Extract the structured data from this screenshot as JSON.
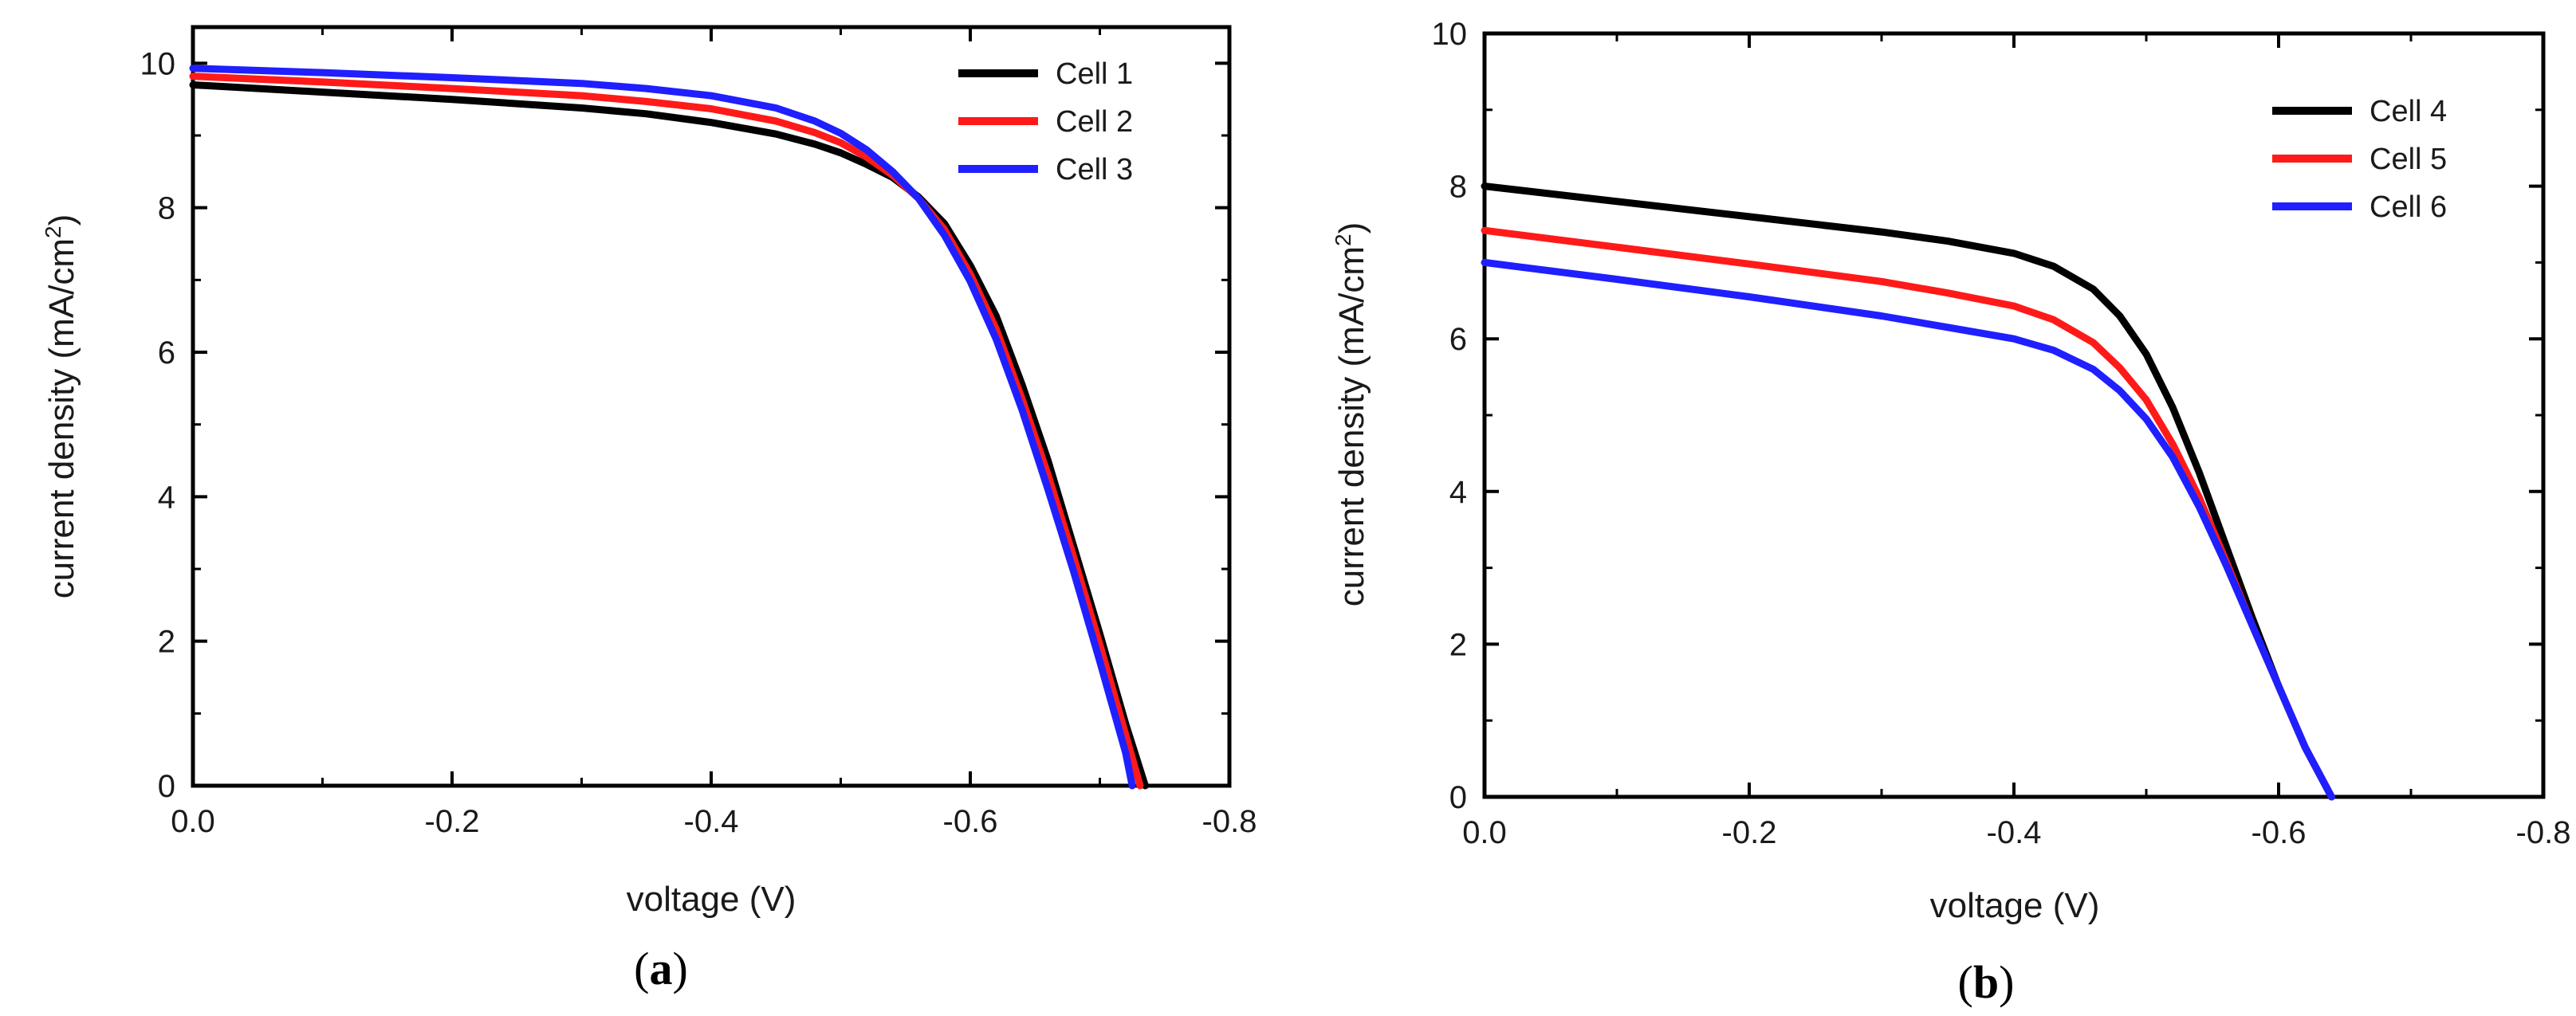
{
  "colors": {
    "cell_black": "#000000",
    "cell_red": "#ff1a1a",
    "cell_blue": "#1f1fff"
  },
  "chart_data": [
    {
      "type": "line",
      "panel": "a",
      "caption_open": "(",
      "caption_letter": "a",
      "caption_close": ")",
      "title": "",
      "xlabel": "voltage (V)",
      "ylabel": "current density (mA/cm²)",
      "ylabel_main": "current density (mA/cm",
      "ylabel_sup": "2",
      "ylabel_close": ")",
      "xlim": [
        0.0,
        -0.8
      ],
      "ylim": [
        0,
        10.5
      ],
      "xticks": [
        0.0,
        -0.2,
        -0.4,
        -0.6,
        -0.8
      ],
      "xtick_labels": [
        "0.0",
        "-0.2",
        "-0.4",
        "-0.6",
        "-0.8"
      ],
      "yticks": [
        0,
        2,
        4,
        6,
        8,
        10
      ],
      "ytick_labels": [
        "0",
        "2",
        "4",
        "6",
        "8",
        "10"
      ],
      "legend_position": "top-right",
      "series": [
        {
          "name": "Cell 1",
          "color": "#000000",
          "x": [
            0,
            -0.1,
            -0.2,
            -0.3,
            -0.35,
            -0.4,
            -0.45,
            -0.48,
            -0.5,
            -0.52,
            -0.54,
            -0.56,
            -0.58,
            -0.6,
            -0.62,
            -0.64,
            -0.66,
            -0.68,
            -0.7,
            -0.72,
            -0.735
          ],
          "y": [
            9.7,
            9.6,
            9.5,
            9.38,
            9.3,
            9.18,
            9.02,
            8.88,
            8.76,
            8.6,
            8.42,
            8.15,
            7.78,
            7.2,
            6.5,
            5.55,
            4.5,
            3.3,
            2.1,
            0.85,
            0
          ]
        },
        {
          "name": "Cell 2",
          "color": "#ff1a1a",
          "x": [
            0,
            -0.1,
            -0.2,
            -0.3,
            -0.35,
            -0.4,
            -0.45,
            -0.48,
            -0.5,
            -0.52,
            -0.54,
            -0.56,
            -0.58,
            -0.6,
            -0.62,
            -0.64,
            -0.66,
            -0.68,
            -0.7,
            -0.72,
            -0.731
          ],
          "y": [
            9.82,
            9.74,
            9.65,
            9.55,
            9.47,
            9.37,
            9.2,
            9.04,
            8.9,
            8.7,
            8.45,
            8.13,
            7.7,
            7.08,
            6.32,
            5.35,
            4.3,
            3.15,
            1.95,
            0.7,
            0
          ]
        },
        {
          "name": "Cell 3",
          "color": "#1f1fff",
          "x": [
            0,
            -0.1,
            -0.2,
            -0.3,
            -0.35,
            -0.4,
            -0.45,
            -0.48,
            -0.5,
            -0.52,
            -0.54,
            -0.56,
            -0.58,
            -0.6,
            -0.62,
            -0.64,
            -0.66,
            -0.68,
            -0.7,
            -0.72,
            -0.725
          ],
          "y": [
            9.93,
            9.87,
            9.8,
            9.72,
            9.65,
            9.55,
            9.38,
            9.2,
            9.03,
            8.8,
            8.5,
            8.13,
            7.62,
            6.98,
            6.18,
            5.2,
            4.1,
            2.95,
            1.72,
            0.45,
            0
          ]
        }
      ]
    },
    {
      "type": "line",
      "panel": "b",
      "caption_open": "(",
      "caption_letter": "b",
      "caption_close": ")",
      "title": "",
      "xlabel": "voltage (V)",
      "ylabel": "current density (mA/cm²)",
      "ylabel_main": "current density (mA/cm",
      "ylabel_sup": "2",
      "ylabel_close": ")",
      "xlim": [
        0.0,
        -0.8
      ],
      "ylim": [
        0,
        10
      ],
      "xticks": [
        0.0,
        -0.2,
        -0.4,
        -0.6,
        -0.8
      ],
      "xtick_labels": [
        "0.0",
        "-0.2",
        "-0.4",
        "-0.6",
        "-0.8"
      ],
      "yticks": [
        0,
        2,
        4,
        6,
        8,
        10
      ],
      "ytick_labels": [
        "0",
        "2",
        "4",
        "6",
        "8",
        "10"
      ],
      "legend_position": "top-right",
      "series": [
        {
          "name": "Cell 4",
          "color": "#000000",
          "x": [
            0,
            -0.1,
            -0.2,
            -0.3,
            -0.35,
            -0.4,
            -0.43,
            -0.46,
            -0.48,
            -0.5,
            -0.52,
            -0.54,
            -0.56,
            -0.58,
            -0.6,
            -0.62,
            -0.64
          ],
          "y": [
            8.0,
            7.8,
            7.6,
            7.4,
            7.28,
            7.12,
            6.95,
            6.65,
            6.3,
            5.8,
            5.1,
            4.25,
            3.3,
            2.35,
            1.45,
            0.65,
            0
          ]
        },
        {
          "name": "Cell 5",
          "color": "#ff1a1a",
          "x": [
            0,
            -0.1,
            -0.2,
            -0.3,
            -0.35,
            -0.4,
            -0.43,
            -0.46,
            -0.48,
            -0.5,
            -0.52,
            -0.54,
            -0.56,
            -0.58,
            -0.6,
            -0.62,
            -0.64
          ],
          "y": [
            7.42,
            7.2,
            6.98,
            6.75,
            6.6,
            6.43,
            6.25,
            5.95,
            5.62,
            5.2,
            4.62,
            3.92,
            3.1,
            2.25,
            1.45,
            0.65,
            0
          ]
        },
        {
          "name": "Cell 6",
          "color": "#1f1fff",
          "x": [
            0,
            -0.1,
            -0.2,
            -0.3,
            -0.35,
            -0.4,
            -0.43,
            -0.46,
            -0.48,
            -0.5,
            -0.52,
            -0.54,
            -0.56,
            -0.58,
            -0.6,
            -0.62,
            -0.64
          ],
          "y": [
            7.0,
            6.78,
            6.55,
            6.3,
            6.15,
            6.0,
            5.85,
            5.6,
            5.32,
            4.95,
            4.45,
            3.8,
            3.05,
            2.25,
            1.45,
            0.65,
            0
          ]
        }
      ]
    }
  ]
}
